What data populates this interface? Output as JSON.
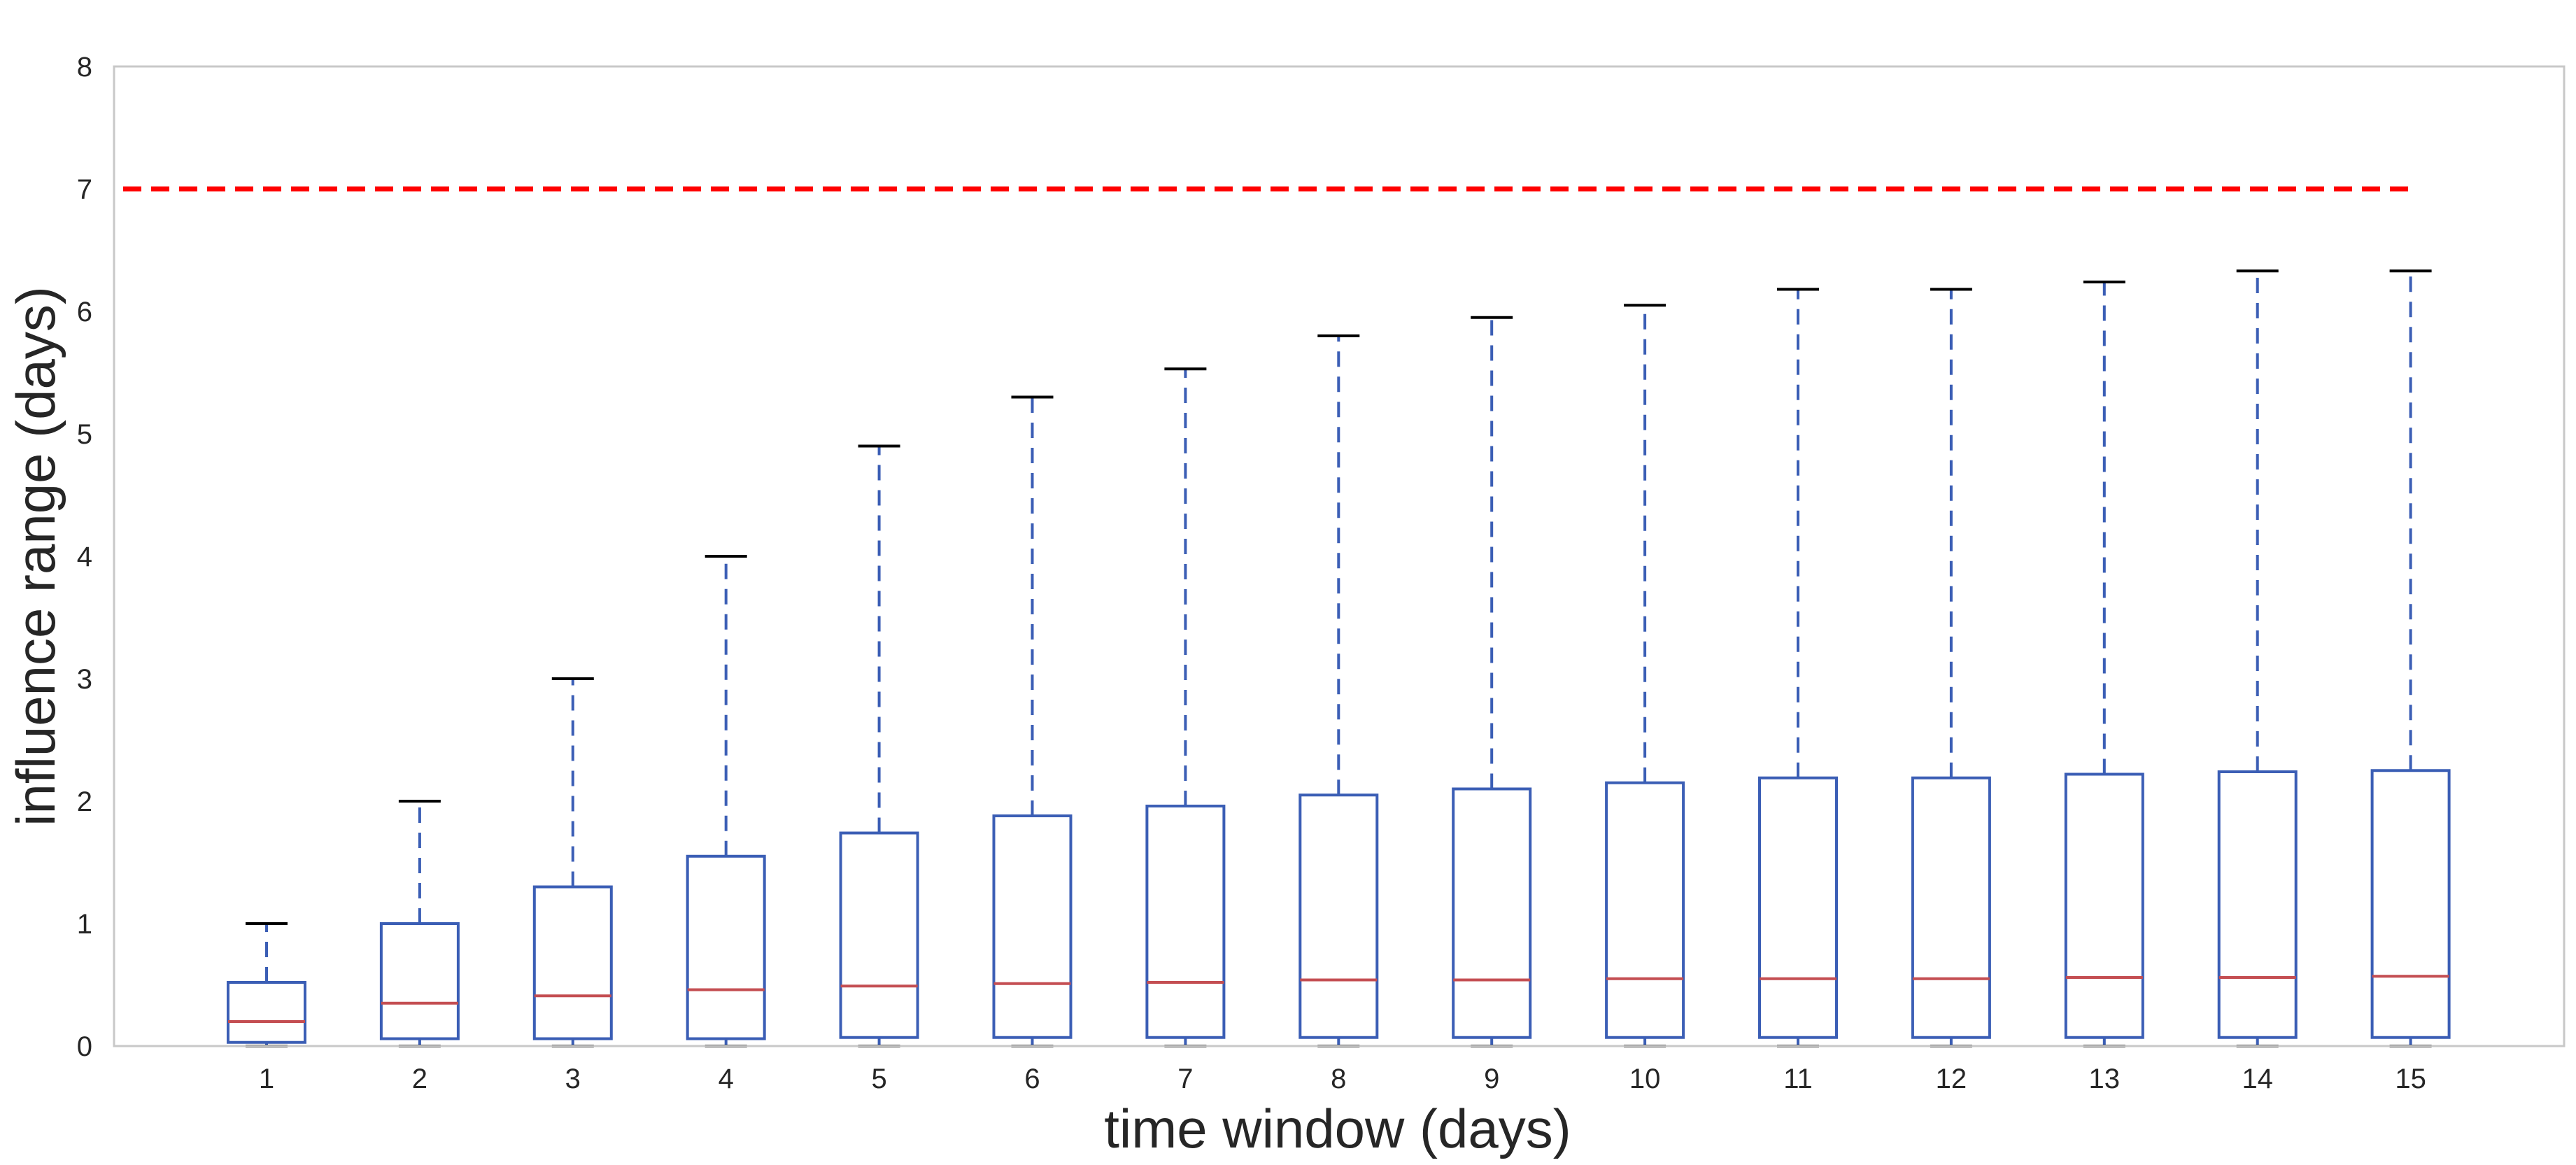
{
  "chart_data": {
    "type": "box",
    "title": "",
    "xlabel": "time window (days)",
    "ylabel": "influence range (days)",
    "ylim": [
      0,
      8
    ],
    "yticks": [
      "0",
      "1",
      "2",
      "3",
      "4",
      "5",
      "6",
      "7",
      "8"
    ],
    "categories": [
      "1",
      "2",
      "3",
      "4",
      "5",
      "6",
      "7",
      "8",
      "9",
      "10",
      "11",
      "12",
      "13",
      "14",
      "15"
    ],
    "boxes": [
      {
        "whisker_low": 0.0,
        "q1": 0.03,
        "median": 0.2,
        "q3": 0.52,
        "whisker_high": 1.0
      },
      {
        "whisker_low": 0.0,
        "q1": 0.06,
        "median": 0.35,
        "q3": 1.0,
        "whisker_high": 2.0
      },
      {
        "whisker_low": 0.0,
        "q1": 0.06,
        "median": 0.41,
        "q3": 1.3,
        "whisker_high": 3.0
      },
      {
        "whisker_low": 0.0,
        "q1": 0.06,
        "median": 0.46,
        "q3": 1.55,
        "whisker_high": 4.0
      },
      {
        "whisker_low": 0.0,
        "q1": 0.07,
        "median": 0.49,
        "q3": 1.74,
        "whisker_high": 4.9
      },
      {
        "whisker_low": 0.0,
        "q1": 0.07,
        "median": 0.51,
        "q3": 1.88,
        "whisker_high": 5.3
      },
      {
        "whisker_low": 0.0,
        "q1": 0.07,
        "median": 0.52,
        "q3": 1.96,
        "whisker_high": 5.53
      },
      {
        "whisker_low": 0.0,
        "q1": 0.07,
        "median": 0.54,
        "q3": 2.05,
        "whisker_high": 5.8
      },
      {
        "whisker_low": 0.0,
        "q1": 0.07,
        "median": 0.54,
        "q3": 2.1,
        "whisker_high": 5.95
      },
      {
        "whisker_low": 0.0,
        "q1": 0.07,
        "median": 0.55,
        "q3": 2.15,
        "whisker_high": 6.05
      },
      {
        "whisker_low": 0.0,
        "q1": 0.07,
        "median": 0.55,
        "q3": 2.19,
        "whisker_high": 6.18
      },
      {
        "whisker_low": 0.0,
        "q1": 0.07,
        "median": 0.55,
        "q3": 2.19,
        "whisker_high": 6.18
      },
      {
        "whisker_low": 0.0,
        "q1": 0.07,
        "median": 0.56,
        "q3": 2.22,
        "whisker_high": 6.24
      },
      {
        "whisker_low": 0.0,
        "q1": 0.07,
        "median": 0.56,
        "q3": 2.24,
        "whisker_high": 6.33
      },
      {
        "whisker_low": 0.0,
        "q1": 0.07,
        "median": 0.57,
        "q3": 2.25,
        "whisker_high": 6.33
      }
    ],
    "reference_line": {
      "y": 7,
      "style": "dashed",
      "color": "#ff0000"
    },
    "grid": false,
    "colors": {
      "box": "#3b5eb5",
      "median": "#c44e52",
      "cap": "#000000",
      "frame": "#c8c8c8",
      "text": "#262626"
    }
  }
}
